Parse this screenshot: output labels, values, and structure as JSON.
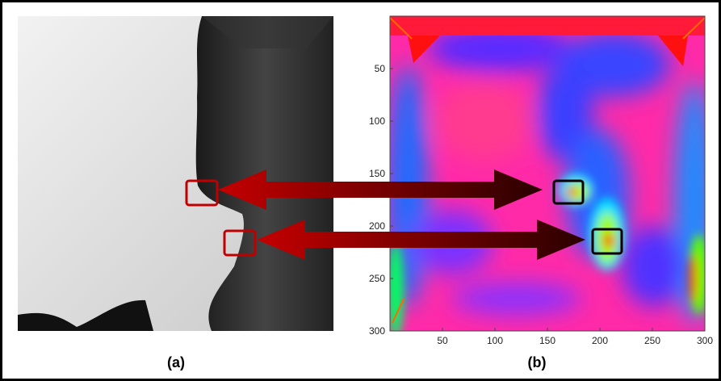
{
  "panels": [
    {
      "label": "(a)"
    },
    {
      "label": "(b)",
      "xlim": [
        0,
        300
      ],
      "ylim": [
        0,
        300
      ],
      "xticks": [
        50,
        100,
        150,
        200,
        250,
        300
      ],
      "yticks": [
        50,
        100,
        150,
        200,
        250,
        300
      ]
    }
  ]
}
